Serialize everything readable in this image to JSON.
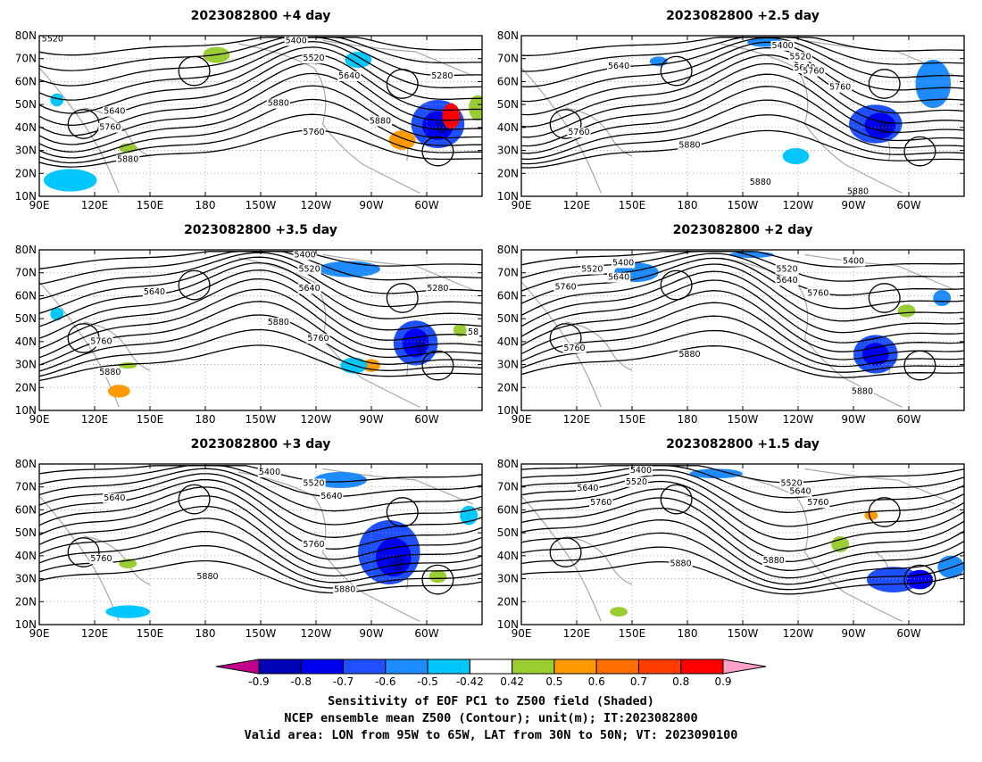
{
  "panels": [
    {
      "title": "2023082800  +4 day",
      "contour_labels": [
        "5520",
        "5400",
        "5520",
        "5640",
        "5280",
        "5640",
        "5880",
        "5880",
        "5760",
        "5760",
        "5880"
      ]
    },
    {
      "title": "2023082800  +2.5 day",
      "contour_labels": [
        "5400",
        "5520",
        "5640",
        "5640",
        "5760",
        "5760",
        "5880",
        "5880",
        "5880",
        "5760"
      ]
    },
    {
      "title": "2023082800  +3.5 day",
      "contour_labels": [
        "5400",
        "5520",
        "5640",
        "5640",
        "5280",
        "5880",
        "5760",
        "5760",
        "5880",
        "58"
      ]
    },
    {
      "title": "2023082800  +2 day",
      "contour_labels": [
        "5400",
        "5520",
        "5640",
        "5760",
        "5520",
        "5640",
        "5400",
        "5760",
        "5760",
        "5880",
        "5880"
      ]
    },
    {
      "title": "2023082800  +3 day",
      "contour_labels": [
        "5400",
        "5520",
        "5640",
        "5640",
        "5760",
        "5760",
        "5880",
        "5880"
      ]
    },
    {
      "title": "2023082800  +1.5 day",
      "contour_labels": [
        "5400",
        "5520",
        "5640",
        "5760",
        "5520",
        "5640",
        "5760",
        "5880",
        "5880"
      ]
    }
  ],
  "axes": {
    "lat_labels": [
      "80N",
      "70N",
      "60N",
      "50N",
      "40N",
      "30N",
      "20N",
      "10N"
    ],
    "lon_labels": [
      "90E",
      "120E",
      "150E",
      "180",
      "150W",
      "120W",
      "90W",
      "60W"
    ]
  },
  "colorbar": {
    "labels": [
      "-0.9",
      "-0.8",
      "-0.7",
      "-0.6",
      "-0.5",
      "-0.42",
      "0.42",
      "0.5",
      "0.6",
      "0.7",
      "0.8",
      "0.9"
    ],
    "colors": [
      "#c0008c",
      "#0000b4",
      "#0000f0",
      "#1e50ff",
      "#1e8cff",
      "#00c8ff",
      "#ffffff",
      "#9acd32",
      "#ff9b00",
      "#ff6e00",
      "#ff3c00",
      "#ff0000",
      "#ffa0c8"
    ]
  },
  "caption": [
    "Sensitivity of EOF PC1 to Z500 field (Shaded)",
    "NCEP ensemble mean Z500 (Contour); unit(m); IT:2023082800",
    "Valid area: LON from 95W to 65W, LAT from 30N to 50N; VT: 2023090100"
  ]
}
